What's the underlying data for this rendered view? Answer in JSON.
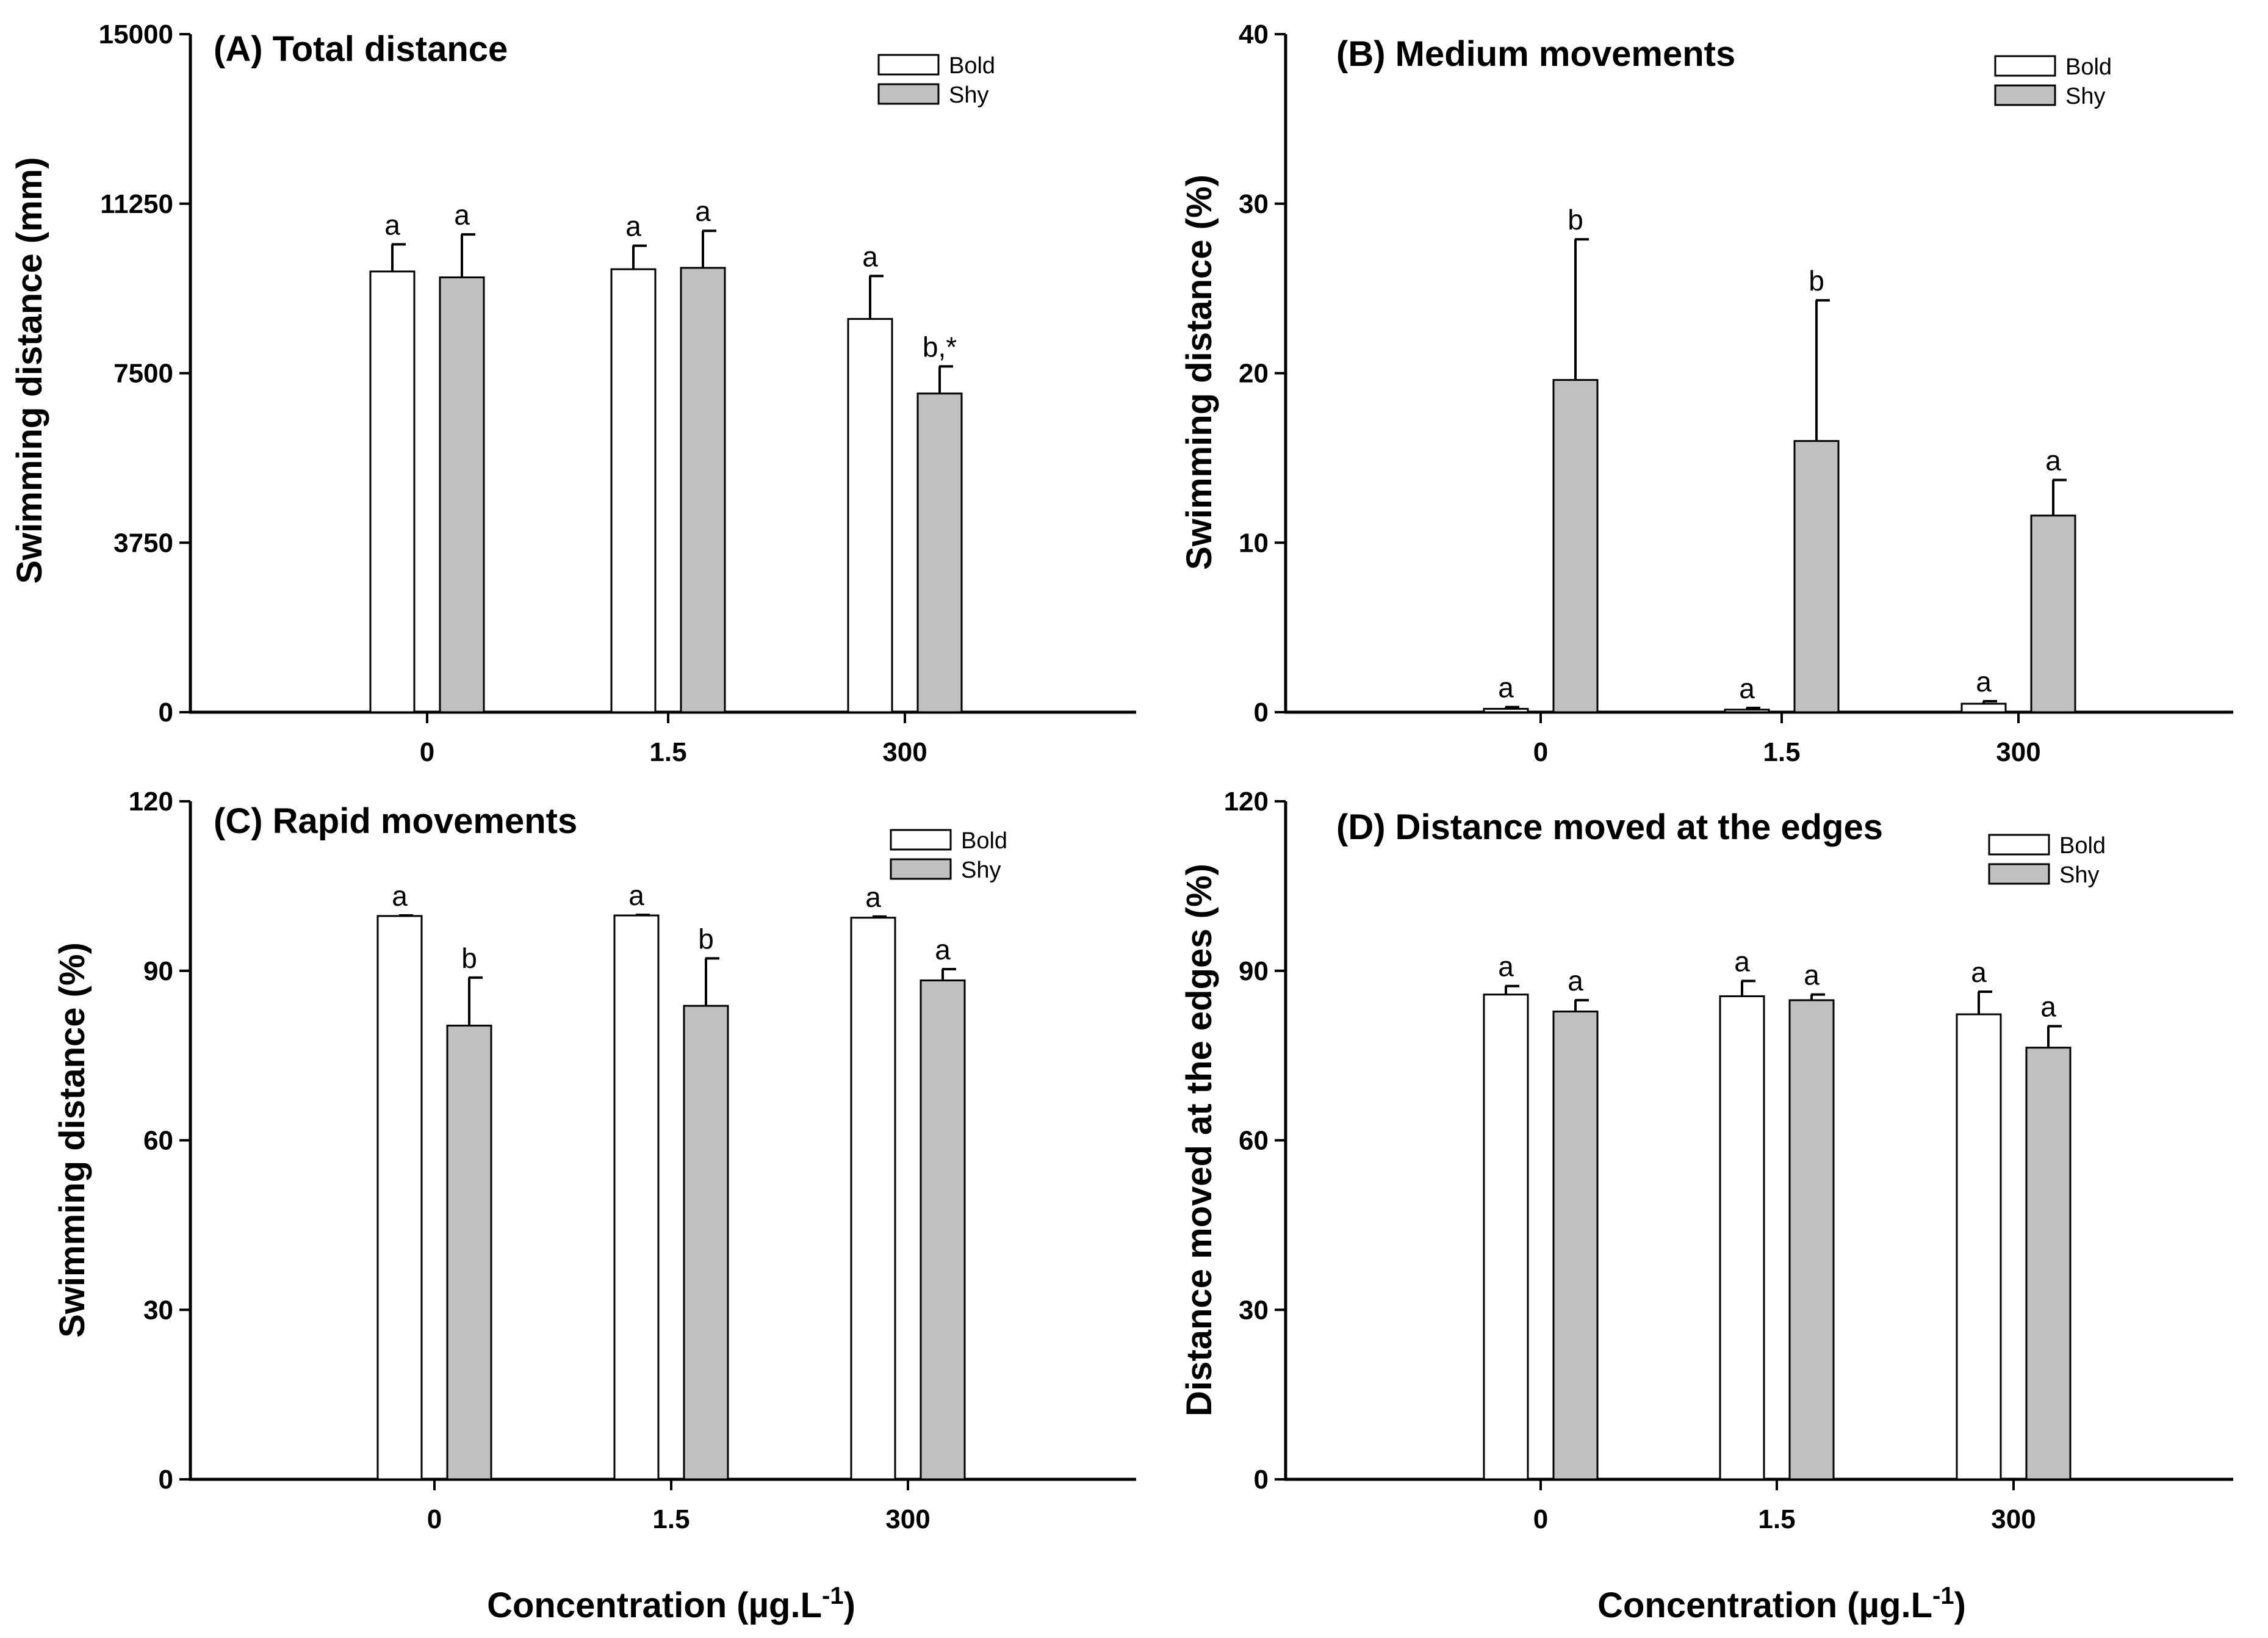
{
  "colors": {
    "bold_fill": "#ffffff",
    "shy_fill": "#c0c0c0",
    "stroke": "#000000"
  },
  "shared_xlabel": {
    "main": "Concentration (µg.L",
    "sup": "-1",
    "close": ")"
  },
  "chart_data": [
    {
      "type": "bar",
      "title": "(A) Total distance",
      "ylabel": "Swimming distance (mm)",
      "xlabel": "",
      "categories": [
        "0",
        "1.5",
        "300"
      ],
      "ylim": [
        0,
        15000
      ],
      "yticks": [
        "0",
        "3750",
        "7500",
        "11250",
        "15000"
      ],
      "ytick_values": [
        0,
        3750,
        7500,
        11250,
        15000
      ],
      "legend": [
        "Bold",
        "Shy"
      ],
      "legend_position": "top-right",
      "series": [
        {
          "name": "Bold",
          "values": [
            9750,
            9800,
            8700
          ],
          "errors": [
            600,
            520,
            950
          ],
          "labels": [
            "a",
            "a",
            "a"
          ]
        },
        {
          "name": "Shy",
          "values": [
            9620,
            9830,
            7050
          ],
          "errors": [
            950,
            820,
            600
          ],
          "labels": [
            "a",
            "a",
            "b,*"
          ]
        }
      ]
    },
    {
      "type": "bar",
      "title": "(B) Medium movements",
      "ylabel": "Swimming distance (%)",
      "xlabel": "",
      "categories": [
        "0",
        "1.5",
        "300"
      ],
      "ylim": [
        0,
        40
      ],
      "yticks": [
        "0",
        "10",
        "20",
        "30",
        "40"
      ],
      "ytick_values": [
        0,
        10,
        20,
        30,
        40
      ],
      "legend": [
        "Bold",
        "Shy"
      ],
      "legend_position": "top-right",
      "series": [
        {
          "name": "Bold",
          "values": [
            0.2,
            0.15,
            0.5
          ],
          "errors": [
            0.1,
            0.1,
            0.15
          ],
          "labels": [
            "a",
            "a",
            "a"
          ]
        },
        {
          "name": "Shy",
          "values": [
            19.6,
            16.0,
            11.6
          ],
          "errors": [
            8.3,
            8.3,
            2.1
          ],
          "labels": [
            "b",
            "b",
            "a"
          ]
        }
      ]
    },
    {
      "type": "bar",
      "title": "(C) Rapid movements",
      "ylabel": "Swimming distance (%)",
      "xlabel": "",
      "categories": [
        "0",
        "1.5",
        "300"
      ],
      "ylim": [
        0,
        120
      ],
      "yticks": [
        "0",
        "30",
        "60",
        "90",
        "120"
      ],
      "ytick_values": [
        0,
        30,
        60,
        90,
        120
      ],
      "legend": [
        "Bold",
        "Shy"
      ],
      "legend_position": "top-right",
      "series": [
        {
          "name": "Bold",
          "values": [
            99.7,
            99.8,
            99.4
          ],
          "errors": [
            0.1,
            0.1,
            0.2
          ],
          "labels": [
            "a",
            "a",
            "a"
          ]
        },
        {
          "name": "Shy",
          "values": [
            80.3,
            83.8,
            88.3
          ],
          "errors": [
            8.5,
            8.4,
            2.0
          ],
          "labels": [
            "b",
            "b",
            "a"
          ]
        }
      ]
    },
    {
      "type": "bar",
      "title": "(D) Distance moved at the edges",
      "ylabel": "Distance moved at the edges (%)",
      "xlabel": "",
      "categories": [
        "0",
        "1.5",
        "300"
      ],
      "ylim": [
        0,
        120
      ],
      "yticks": [
        "0",
        "30",
        "60",
        "90",
        "120"
      ],
      "ytick_values": [
        0,
        30,
        60,
        90,
        120
      ],
      "legend": [
        "Bold",
        "Shy"
      ],
      "legend_position": "top-right",
      "series": [
        {
          "name": "Bold",
          "values": [
            85.8,
            85.5,
            82.3
          ],
          "errors": [
            1.5,
            2.7,
            4.0
          ],
          "labels": [
            "a",
            "a",
            "a"
          ]
        },
        {
          "name": "Shy",
          "values": [
            82.8,
            84.8,
            76.4
          ],
          "errors": [
            2.0,
            1.0,
            3.8
          ],
          "labels": [
            "a",
            "a",
            "a"
          ]
        }
      ]
    }
  ]
}
